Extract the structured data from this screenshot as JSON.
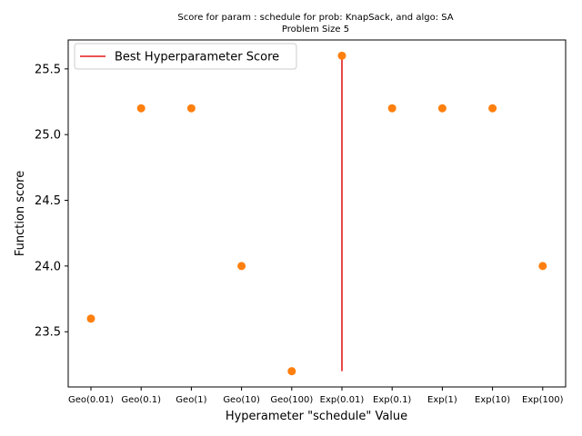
{
  "chart_data": {
    "type": "scatter",
    "title_line1": "Score for param : schedule for prob: KnapSack, and algo: SA",
    "title_line2": "Problem Size 5",
    "xlabel": "Hyperameter \"schedule\" Value",
    "ylabel": "Function score",
    "categories": [
      "Geo(0.01)",
      "Geo(0.1)",
      "Geo(1)",
      "Geo(10)",
      "Geo(100)",
      "Exp(0.01)",
      "Exp(0.1)",
      "Exp(1)",
      "Exp(10)",
      "Exp(100)"
    ],
    "series": [
      {
        "values": [
          23.6,
          25.2,
          25.2,
          24.0,
          23.2,
          25.6,
          25.2,
          25.2,
          25.2,
          24.0
        ],
        "color": "#ff7f0e"
      }
    ],
    "best_line": {
      "name": "Best Hyperparameter Score",
      "category": "Exp(0.01)",
      "y_from": 23.2,
      "y_to": 25.6,
      "color": "#e41a1c"
    },
    "yticks": [
      "23.5",
      "24.0",
      "24.5",
      "25.0",
      "25.5"
    ],
    "ylim": [
      23.08,
      25.72
    ],
    "legend_position": "upper-left",
    "grid": false
  }
}
